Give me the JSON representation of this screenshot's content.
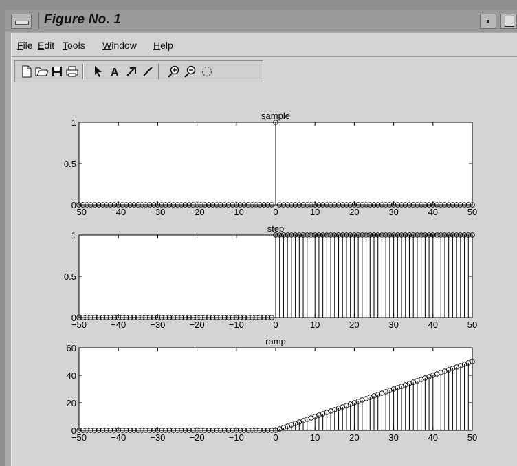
{
  "window": {
    "title": "Figure No. 1"
  },
  "menu": [
    "File",
    "Edit",
    "Tools",
    "Window",
    "Help"
  ],
  "toolbar": [
    "new-file-icon",
    "open-file-icon",
    "save-icon",
    "print-icon",
    "select-arrow-icon",
    "insert-text-icon",
    "insert-arrow-icon",
    "insert-line-icon",
    "zoom-in-icon",
    "zoom-out-icon",
    "rotate-icon"
  ],
  "chart_data": [
    {
      "type": "stem",
      "title": "sample",
      "xlim": [
        -50,
        50
      ],
      "ylim": [
        0,
        1
      ],
      "xticks": [
        -50,
        -40,
        -30,
        -20,
        -10,
        0,
        10,
        20,
        30,
        40,
        50
      ],
      "yticks": [
        0,
        0.5,
        1
      ],
      "yticklabels": [
        "0",
        "0.5",
        "1"
      ],
      "x": "integers -50..50",
      "y_rule": "1 at n = 0, else 0"
    },
    {
      "type": "stem",
      "title": "step",
      "xlim": [
        -50,
        50
      ],
      "ylim": [
        0,
        1
      ],
      "xticks": [
        -50,
        -40,
        -30,
        -20,
        -10,
        0,
        10,
        20,
        30,
        40,
        50
      ],
      "yticks": [
        0,
        0.5,
        1
      ],
      "yticklabels": [
        "0",
        "0.5",
        "1"
      ],
      "x": "integers -50..50",
      "y_rule": "1 for n >= 0, else 0"
    },
    {
      "type": "stem",
      "title": "ramp",
      "xlim": [
        -50,
        50
      ],
      "ylim": [
        0,
        60
      ],
      "xticks": [
        -50,
        -40,
        -30,
        -20,
        -10,
        0,
        10,
        20,
        30,
        40,
        50
      ],
      "yticks": [
        0,
        20,
        40,
        60
      ],
      "yticklabels": [
        "0",
        "20",
        "40",
        "60"
      ],
      "x": "integers -50..50",
      "y_rule": "n for n >= 0, else 0"
    }
  ]
}
